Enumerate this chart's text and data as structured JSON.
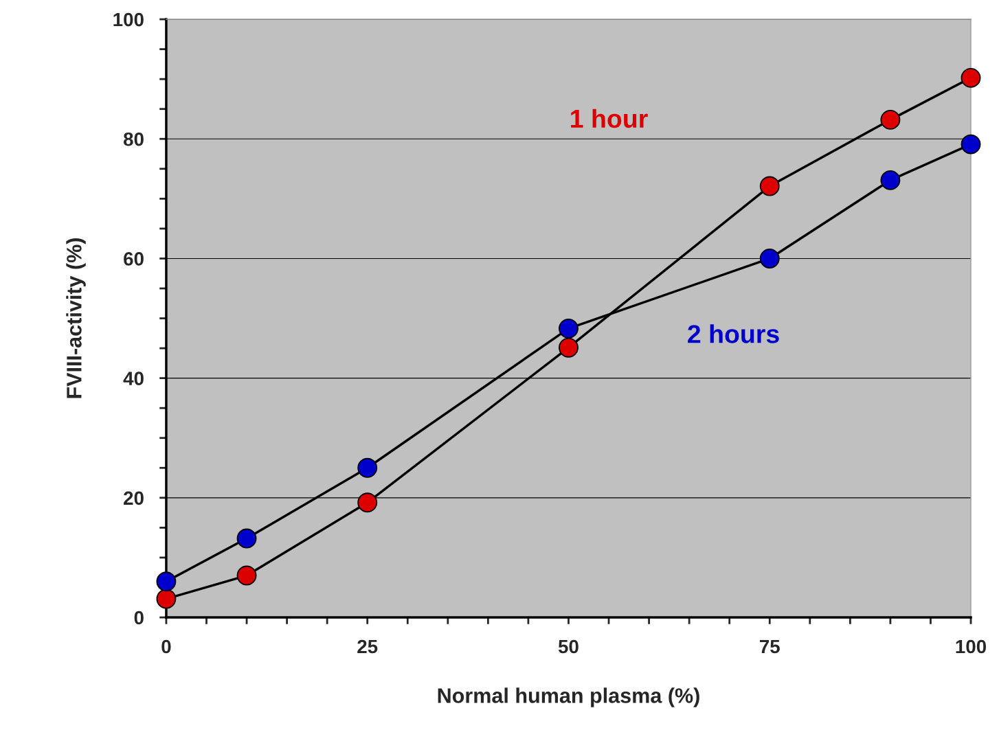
{
  "chart_data": {
    "type": "line",
    "xlabel": "Normal human plasma (%)",
    "ylabel": "FVIII-activity (%)",
    "x": [
      0,
      10,
      25,
      50,
      75,
      90,
      100
    ],
    "series": [
      {
        "name": "1 hour",
        "color": "#dd0000",
        "values": [
          3.1,
          7.0,
          19.2,
          45.1,
          72.1,
          83.2,
          90.2
        ]
      },
      {
        "name": "2 hours",
        "color": "#0000cc",
        "values": [
          6.0,
          13.2,
          25.0,
          48.3,
          60.0,
          73.1,
          79.1
        ]
      }
    ],
    "xlim": [
      0,
      100
    ],
    "ylim": [
      0,
      100
    ],
    "xticks": [
      0,
      {
        "value": 5,
        "label": null
      },
      {
        "value": 10,
        "label": null
      },
      {
        "value": 15,
        "label": null
      },
      {
        "value": 20,
        "label": null
      },
      25,
      {
        "value": 30,
        "label": null
      },
      {
        "value": 35,
        "label": null
      },
      {
        "value": 40,
        "label": null
      },
      {
        "value": 45,
        "label": null
      },
      50,
      {
        "value": 55,
        "label": null
      },
      {
        "value": 60,
        "label": null
      },
      {
        "value": 65,
        "label": null
      },
      {
        "value": 70,
        "label": null
      },
      75,
      {
        "value": 80,
        "label": null
      },
      {
        "value": 85,
        "label": null
      },
      {
        "value": 90,
        "label": null
      },
      {
        "value": 95,
        "label": null
      },
      100
    ],
    "yticks": [
      0,
      {
        "value": 5,
        "label": null
      },
      {
        "value": 10,
        "label": null
      },
      {
        "value": 15,
        "label": null
      },
      20,
      {
        "value": 25,
        "label": null
      },
      {
        "value": 30,
        "label": null
      },
      {
        "value": 35,
        "label": null
      },
      40,
      {
        "value": 45,
        "label": null
      },
      {
        "value": 50,
        "label": null
      },
      {
        "value": 55,
        "label": null
      },
      60,
      {
        "value": 65,
        "label": null
      },
      {
        "value": 70,
        "label": null
      },
      {
        "value": 75,
        "label": null
      },
      80,
      {
        "value": 85,
        "label": null
      },
      {
        "value": 90,
        "label": null
      },
      {
        "value": 95,
        "label": null
      },
      100
    ],
    "grid": "y",
    "marker": "circle",
    "line_style": "solid",
    "legend": false
  }
}
